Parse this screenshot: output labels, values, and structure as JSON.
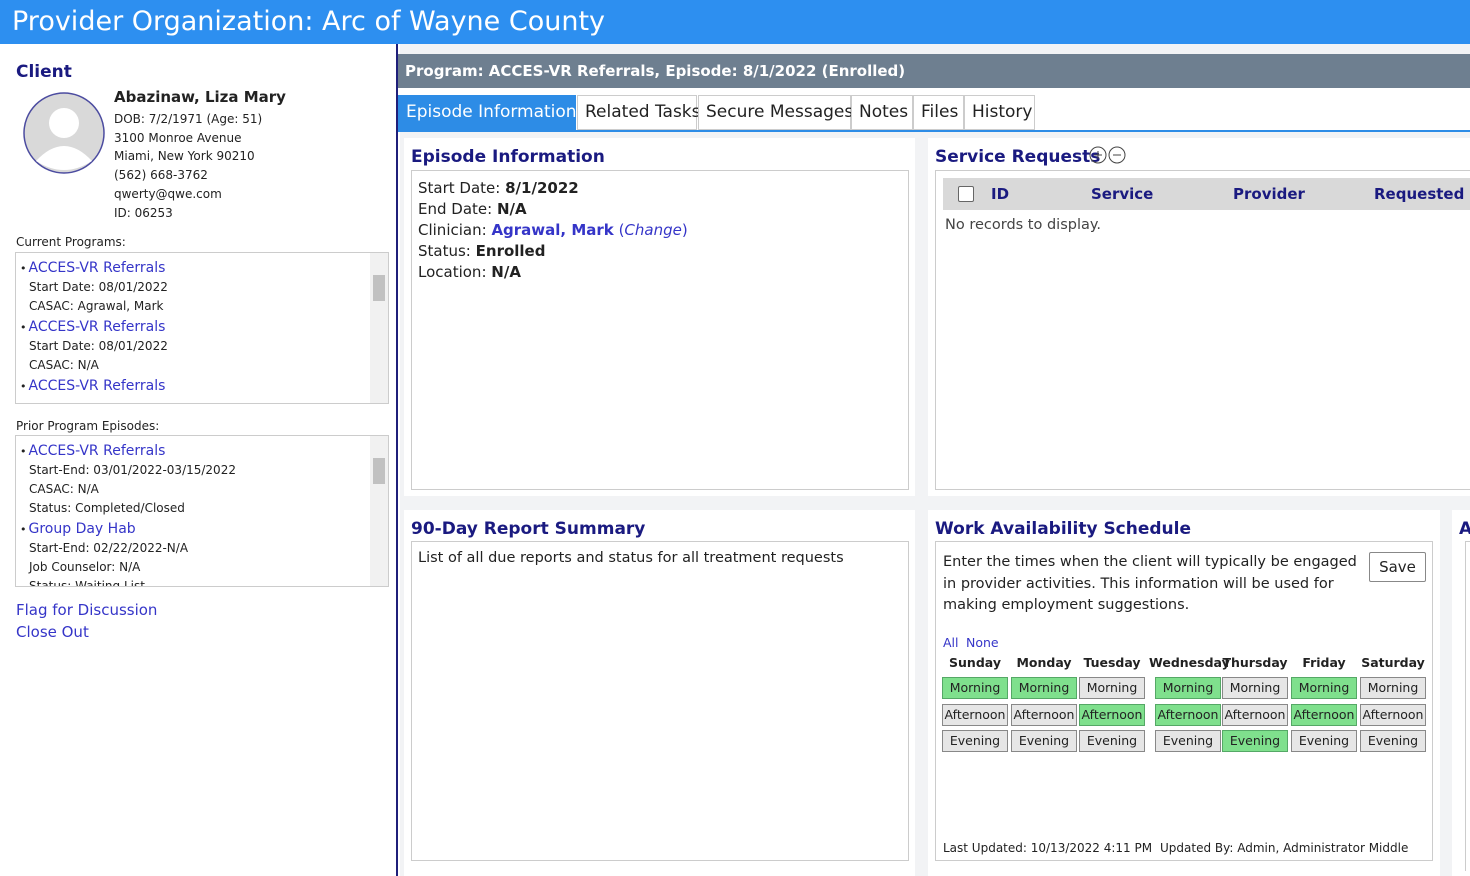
{
  "header": {
    "title": "Provider Organization: Arc of Wayne County"
  },
  "client": {
    "heading": "Client",
    "name": "Abazinaw, Liza Mary",
    "details": [
      "DOB: 7/2/1971 (Age: 51)",
      "3100 Monroe Avenue",
      "Miami, New York 90210",
      "(562) 668-3762",
      "qwerty@qwe.com",
      "ID: 06253"
    ],
    "current_programs": {
      "label": "Current Programs:",
      "items": [
        {
          "name": "ACCES-VR Referrals",
          "lines": [
            "Start Date: 08/01/2022",
            "CASAC: Agrawal, Mark"
          ]
        },
        {
          "name": "ACCES-VR Referrals",
          "lines": [
            "Start Date: 08/01/2022",
            "CASAC: N/A"
          ]
        },
        {
          "name": "ACCES-VR Referrals",
          "lines": []
        }
      ]
    },
    "prior_programs": {
      "label": "Prior Program Episodes:",
      "items": [
        {
          "name": "ACCES-VR Referrals",
          "lines": [
            "Start-End: 03/01/2022-03/15/2022",
            "CASAC: N/A",
            "Status: Completed/Closed"
          ]
        },
        {
          "name": "Group Day Hab",
          "lines": [
            "Start-End: 02/22/2022-N/A",
            "Job Counselor: N/A",
            "Status: Waiting List"
          ]
        }
      ]
    },
    "links": [
      "Flag for Discussion",
      "Close Out"
    ]
  },
  "program_bar": "Program: ACCES-VR Referrals, Episode: 8/1/2022 (Enrolled)",
  "tabs": [
    "Episode Information",
    "Related Tasks",
    "Secure Messages",
    "Notes",
    "Files",
    "History"
  ],
  "episode": {
    "title": "Episode Information",
    "fields": [
      {
        "label": "Start Date:",
        "value": "8/1/2022"
      },
      {
        "label": "End Date:",
        "value": "N/A"
      },
      {
        "label": "Clinician:",
        "value": "Agrawal, Mark",
        "open": "(",
        "link": "Change",
        "close": ")"
      },
      {
        "label": "Status:",
        "value": "Enrolled"
      },
      {
        "label": "Location:",
        "value": "N/A"
      }
    ]
  },
  "service_requests": {
    "title": "Service Requests",
    "columns": [
      "ID",
      "Service",
      "Provider",
      "Requested C"
    ],
    "empty": "No records to display."
  },
  "report": {
    "title": "90-Day Report Summary",
    "text": "List of all due reports and status for all treatment requests"
  },
  "schedule": {
    "title": "Work Availability Schedule",
    "text": "Enter the times when the client will typically be engaged in provider activities. This information will be used for making employment suggestions.",
    "save": "Save",
    "all": "All",
    "none": "None",
    "days": [
      "Sunday",
      "Monday",
      "Tuesday",
      "Wednesday",
      "Thursday",
      "Friday",
      "Saturday"
    ],
    "rows": [
      {
        "label": "Morning",
        "selected": [
          true,
          true,
          false,
          true,
          false,
          true,
          false
        ]
      },
      {
        "label": "Afternoon",
        "selected": [
          false,
          false,
          true,
          true,
          false,
          true,
          false
        ]
      },
      {
        "label": "Evening",
        "selected": [
          false,
          false,
          false,
          false,
          true,
          false,
          false
        ]
      }
    ],
    "last_updated": "Last Updated: 10/13/2022 4:11 PM",
    "updated_by": "Updated By: Admin, Administrator Middle"
  },
  "partial_panel": {
    "title": "A"
  }
}
